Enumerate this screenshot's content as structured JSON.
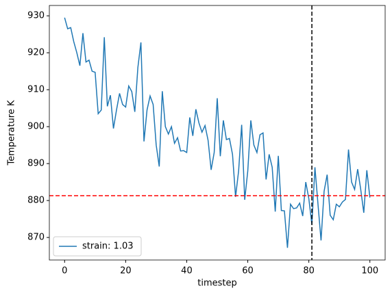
{
  "chart_data": {
    "type": "line",
    "x_label": "timestep",
    "y_label": "Temperature K",
    "x": [
      0,
      1,
      2,
      3,
      4,
      5,
      6,
      7,
      8,
      9,
      10,
      11,
      12,
      13,
      14,
      15,
      16,
      17,
      18,
      19,
      20,
      21,
      22,
      23,
      24,
      25,
      26,
      27,
      28,
      29,
      30,
      31,
      32,
      33,
      34,
      35,
      36,
      37,
      38,
      39,
      40,
      41,
      42,
      43,
      44,
      45,
      46,
      47,
      48,
      49,
      50,
      51,
      52,
      53,
      54,
      55,
      56,
      57,
      58,
      59,
      60,
      61,
      62,
      63,
      64,
      65,
      66,
      67,
      68,
      69,
      70,
      71,
      72,
      73,
      74,
      75,
      76,
      77,
      78,
      79,
      80,
      81,
      82,
      83,
      84,
      85,
      86,
      87,
      88,
      89,
      90,
      91,
      92,
      93,
      94,
      95,
      96,
      97,
      98,
      99,
      100
    ],
    "series": [
      {
        "name": "strain: 1.03",
        "color": "#1f77b4",
        "values": [
          929.5,
          926.5,
          926.8,
          923,
          920,
          916.5,
          925.3,
          917.5,
          918,
          915,
          914.7,
          903.5,
          904.5,
          924.2,
          905.5,
          908.5,
          899.5,
          904.5,
          909,
          906,
          905.3,
          911,
          909.5,
          904,
          916,
          922.8,
          896,
          904.5,
          908.3,
          906,
          895,
          889.2,
          909.6,
          900,
          898,
          900,
          895.5,
          897,
          893.4,
          893.5,
          893,
          902.5,
          897.5,
          904.7,
          901,
          898.5,
          900.3,
          896.3,
          888.3,
          893,
          907.7,
          892,
          901.7,
          896.5,
          896.8,
          892.5,
          881,
          888,
          900.5,
          880.2,
          888,
          901.7,
          895,
          893,
          897.8,
          898.3,
          885.7,
          892.5,
          889,
          877,
          892.1,
          877.3,
          877.2,
          867.2,
          879,
          877.8,
          878,
          879.3,
          875.8,
          885,
          880.5,
          873.5,
          889,
          879,
          869.2,
          882.5,
          887,
          876,
          874.8,
          879,
          878.3,
          879.6,
          880.3,
          893.8,
          885,
          883,
          888.5,
          883,
          876.7,
          888.2,
          880.8
        ]
      }
    ],
    "xlim": [
      -5,
      105
    ],
    "ylim": [
      863.9,
      932.8
    ],
    "xticks": [
      0,
      20,
      40,
      60,
      80,
      100
    ],
    "yticks": [
      870,
      880,
      890,
      900,
      910,
      920,
      930
    ],
    "hline": {
      "value": 881.3,
      "color": "#ff0000"
    },
    "vline": {
      "value": 81,
      "color": "#000000"
    },
    "legend": "lower left"
  }
}
